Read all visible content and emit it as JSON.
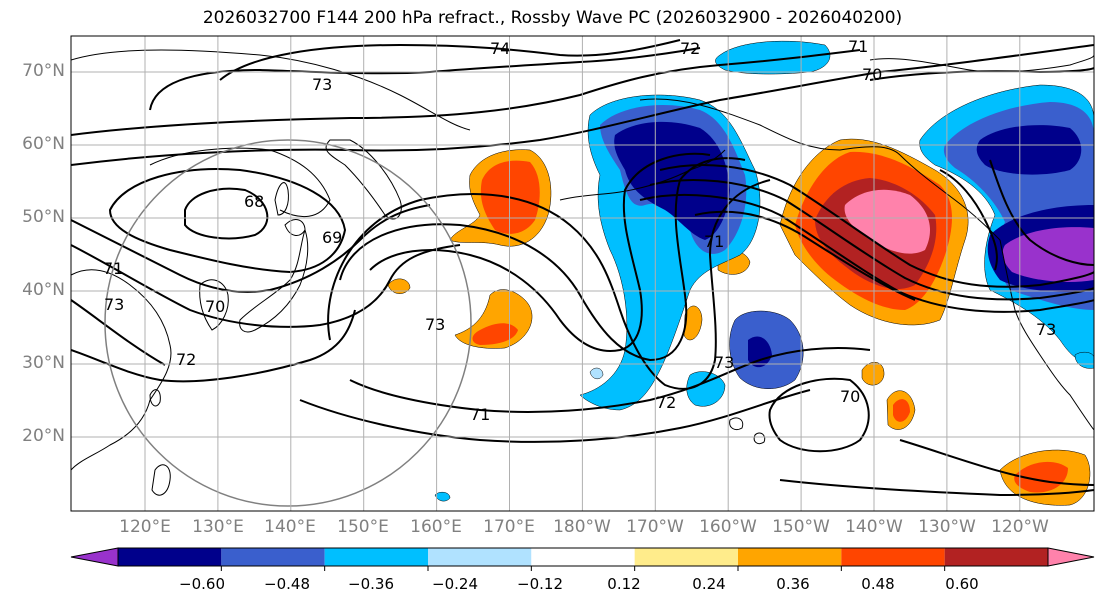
{
  "title": "2026032700 F144 200 hPa refract., Rossby Wave PC (2026032900 - 2026040200)",
  "lat_labels": [
    "70°N",
    "60°N",
    "50°N",
    "40°N",
    "30°N",
    "20°N"
  ],
  "lat_values": [
    70,
    60,
    50,
    40,
    30,
    20
  ],
  "lon_labels": [
    "120°E",
    "130°E",
    "140°E",
    "150°E",
    "160°E",
    "170°E",
    "180°W",
    "170°W",
    "160°W",
    "150°W",
    "140°W",
    "130°W",
    "120°W"
  ],
  "contour_labels": [
    "74",
    "72",
    "71",
    "70",
    "73",
    "68",
    "69",
    "71",
    "73",
    "70",
    "72",
    "73",
    "72",
    "71",
    "73",
    "70",
    "73",
    "71"
  ],
  "colorbar": {
    "ticks": [
      "−0.60",
      "−0.48",
      "−0.36",
      "−0.24",
      "−0.12",
      "0.12",
      "0.24",
      "0.36",
      "0.48",
      "0.60"
    ],
    "colors": [
      "#9932cc",
      "#00008b",
      "#3a5fcd",
      "#00bfff",
      "#b0e2ff",
      "#ffffff",
      "#ffec8b",
      "#ffa500",
      "#ff4500",
      "#b22222",
      "#ff82ab"
    ]
  },
  "palette": {
    "pos1": "#ffec8b",
    "pos2": "#ffa500",
    "pos3": "#ff4500",
    "pos4": "#b22222",
    "pos5": "#ff82ab",
    "neg1": "#b0e2ff",
    "neg2": "#00bfff",
    "neg3": "#3a5fcd",
    "neg4": "#00008b",
    "neg5": "#9932cc"
  }
}
